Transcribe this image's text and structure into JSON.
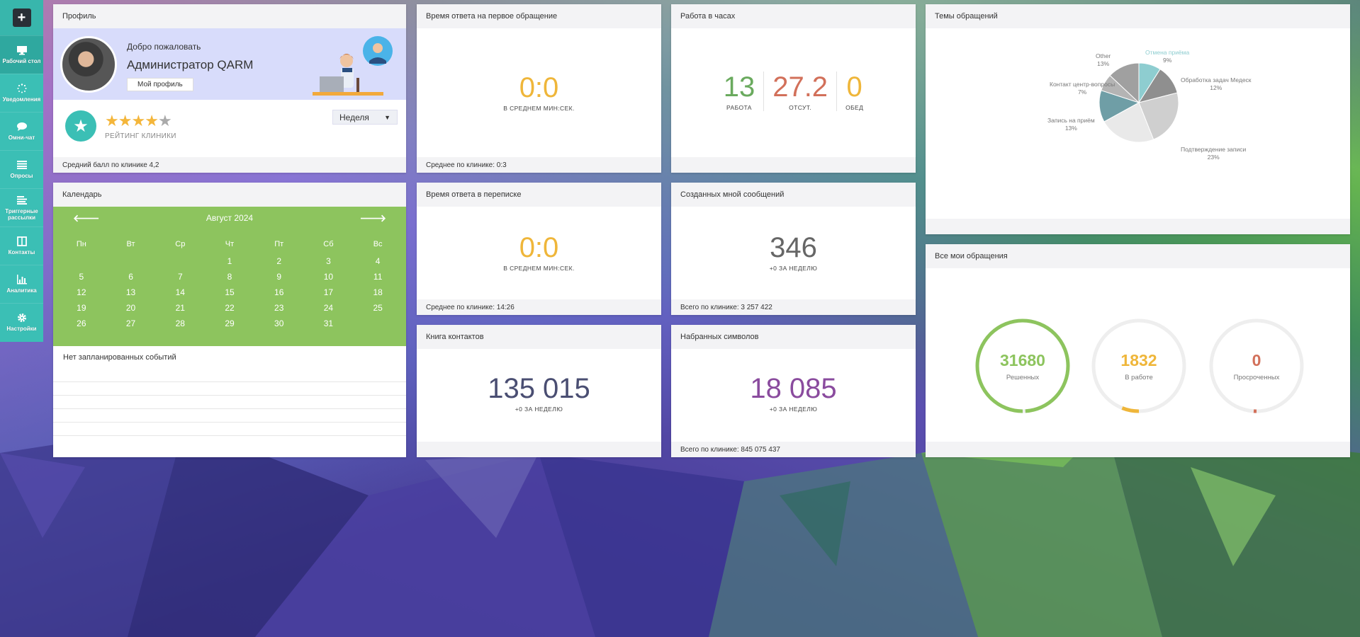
{
  "sidebar": {
    "add_icon": "plus-icon",
    "items": [
      {
        "label": "Рабочий стол",
        "icon": "monitor-icon",
        "active": true
      },
      {
        "label": "Уведомления",
        "icon": "spinner-icon"
      },
      {
        "label": "Омни-чат",
        "icon": "chat-bubble-icon"
      },
      {
        "label": "Опросы",
        "icon": "list-icon"
      },
      {
        "label": "Триггерные рассылки",
        "icon": "lines-icon"
      },
      {
        "label": "Контакты",
        "icon": "book-icon"
      },
      {
        "label": "Аналитика",
        "icon": "bar-chart-icon"
      },
      {
        "label": "Настройки",
        "icon": "gear-icon"
      }
    ]
  },
  "profile": {
    "title": "Профиль",
    "welcome": "Добро пожаловать",
    "name": "Администратор QARM",
    "button": "Мой профиль",
    "rating": 4,
    "rating_label": "РЕЙТИНГ КЛИНИКИ",
    "period": "Неделя",
    "footer": "Средний балл по клинике 4,2"
  },
  "calendar": {
    "title": "Календарь",
    "month": "Август 2024",
    "weekdays": [
      "Пн",
      "Вт",
      "Ср",
      "Чт",
      "Пт",
      "Сб",
      "Вс"
    ],
    "weeks": [
      [
        "",
        "",
        "",
        "1",
        "2",
        "3",
        "4"
      ],
      [
        "5",
        "6",
        "7",
        "8",
        "9",
        "10",
        "11"
      ],
      [
        "12",
        "13",
        "14",
        "15",
        "16",
        "17",
        "18"
      ],
      [
        "19",
        "20",
        "21",
        "22",
        "23",
        "24",
        "25"
      ],
      [
        "26",
        "27",
        "28",
        "29",
        "30",
        "31",
        ""
      ]
    ],
    "no_events": "Нет запланированных событий"
  },
  "first_response": {
    "title": "Время ответа на первое обращение",
    "value": "0:0",
    "caption": "В СРЕДНЕМ МИН:СЕК.",
    "footer": "Среднее по клинике: 0:3"
  },
  "work_hours": {
    "title": "Работа в часах",
    "items": [
      {
        "value": "13",
        "label": "РАБОТА",
        "color": "#6aaa5e"
      },
      {
        "value": "27.2",
        "label": "ОТСУТ.",
        "color": "#d2705a"
      },
      {
        "value": "0",
        "label": "ОБЕД",
        "color": "#efb63a"
      }
    ]
  },
  "topics": {
    "title": "Темы обращений"
  },
  "chat_response": {
    "title": "Время ответа в переписке",
    "value": "0:0",
    "caption": "В СРЕДНЕМ МИН:СЕК.",
    "footer": "Среднее по клинике: 14:26"
  },
  "created_messages": {
    "title": "Созданных мной сообщений",
    "value": "346",
    "caption": "+0 ЗА НЕДЕЛЮ",
    "footer": "Всего по клинике: 3 257 422"
  },
  "all_requests": {
    "title": "Все мои обращения",
    "items": [
      {
        "value": "31680",
        "label": "Решенных",
        "color": "#8dc45e",
        "fill": 0.99
      },
      {
        "value": "1832",
        "label": "В работе",
        "color": "#efb63a",
        "fill": 0.06
      },
      {
        "value": "0",
        "label": "Просроченных",
        "color": "#d2705a",
        "fill": 0.01
      }
    ]
  },
  "contacts_book": {
    "title": "Книга контактов",
    "value": "135 015",
    "caption": "+0 ЗА НЕДЕЛЮ"
  },
  "typed_chars": {
    "title": "Набранных символов",
    "value": "18 085",
    "caption": "+0 ЗА НЕДЕЛЮ",
    "footer": "Всего по клинике: 845 075 437"
  },
  "chart_data": {
    "type": "pie",
    "title": "Темы обращений",
    "slices": [
      {
        "name": "Отмена приёма",
        "pct": "9%",
        "value": 9,
        "color": "#8ecdd0"
      },
      {
        "name": "Обработка задач Медеск",
        "pct": "12%",
        "value": 12,
        "color": "#8f8f8f"
      },
      {
        "name": "Подтверждение записи",
        "pct": "23%",
        "value": 23,
        "color": "#cfcfcf"
      },
      {
        "name": "",
        "pct": "",
        "value": 23,
        "color": "#e9e9e9"
      },
      {
        "name": "Запись на приём",
        "pct": "13%",
        "value": 13,
        "color": "#6f9ea6"
      },
      {
        "name": "Контакт центр-вопросы",
        "pct": "7%",
        "value": 7,
        "color": "#b4b4b4"
      },
      {
        "name": "Other",
        "pct": "13%",
        "value": 13,
        "color": "#a0a0a0"
      }
    ]
  }
}
